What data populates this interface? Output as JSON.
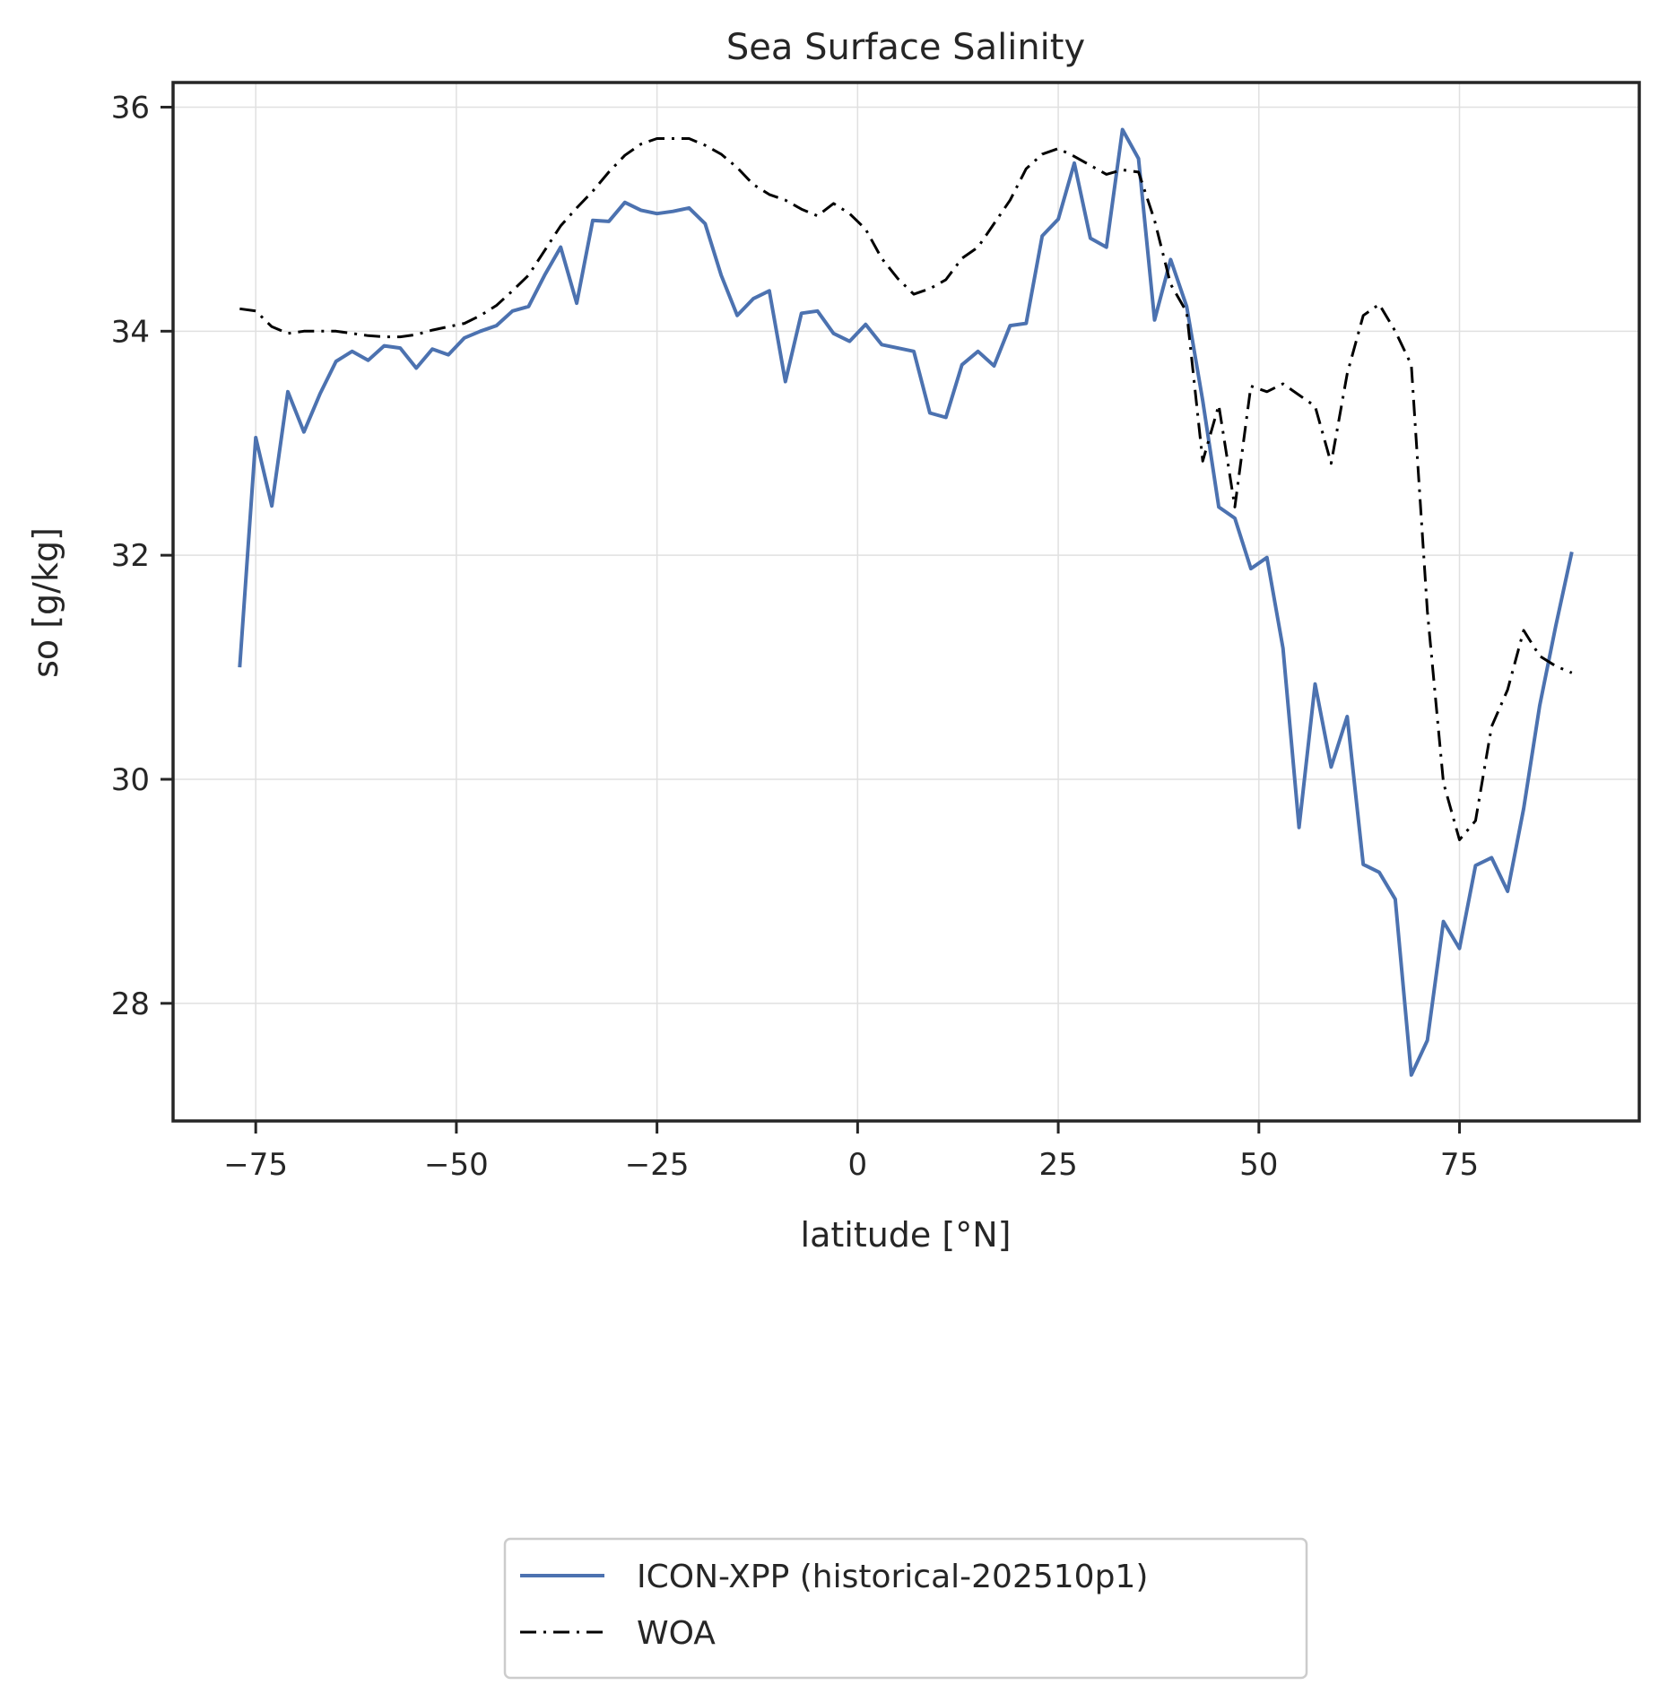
{
  "chart_data": {
    "type": "line",
    "title": "Sea Surface Salinity",
    "xlabel": "latitude [°N]",
    "ylabel": "so [g/kg]",
    "xlim": [
      -85.3,
      97.4
    ],
    "ylim": [
      26.95,
      36.22
    ],
    "xticks": [
      -75,
      -50,
      -25,
      0,
      25,
      50,
      75
    ],
    "xtick_labels": [
      "−75",
      "−50",
      "−25",
      "0",
      "25",
      "50",
      "75"
    ],
    "yticks": [
      28,
      30,
      32,
      34,
      36
    ],
    "ytick_labels": [
      "28",
      "30",
      "32",
      "34",
      "36"
    ],
    "grid": true,
    "legend_position": "below plot, centered",
    "x": [
      -77,
      -75,
      -73,
      -71,
      -69,
      -67,
      -65,
      -63,
      -61,
      -59,
      -57,
      -55,
      -53,
      -51,
      -49,
      -47,
      -45,
      -43,
      -41,
      -39,
      -37,
      -35,
      -33,
      -31,
      -29,
      -27,
      -25,
      -23,
      -21,
      -19,
      -17,
      -15,
      -13,
      -11,
      -9,
      -7,
      -5,
      -3,
      -1,
      1,
      3,
      5,
      7,
      9,
      11,
      13,
      15,
      17,
      19,
      21,
      23,
      25,
      27,
      29,
      31,
      33,
      35,
      37,
      39,
      41,
      43,
      45,
      47,
      49,
      51,
      53,
      55,
      57,
      59,
      61,
      63,
      65,
      67,
      69,
      71,
      73,
      75,
      77,
      79,
      81,
      83,
      85,
      87,
      89
    ],
    "series": [
      {
        "name": "ICON-XPP (historical-202510p1)",
        "color": "#4c72b0",
        "linestyle": "solid",
        "values": [
          31.0,
          33.05,
          32.44,
          33.46,
          33.1,
          33.44,
          33.73,
          33.82,
          33.74,
          33.87,
          33.85,
          33.67,
          33.84,
          33.79,
          33.94,
          34.0,
          34.05,
          34.18,
          34.22,
          34.5,
          34.75,
          34.25,
          34.99,
          34.98,
          35.15,
          35.08,
          35.05,
          35.07,
          35.1,
          34.96,
          34.5,
          34.14,
          34.29,
          34.36,
          33.55,
          34.16,
          34.18,
          33.98,
          33.91,
          34.06,
          33.88,
          33.85,
          33.82,
          33.27,
          33.23,
          33.7,
          33.82,
          33.69,
          34.05,
          34.07,
          34.85,
          35.0,
          35.5,
          34.83,
          34.75,
          35.8,
          35.54,
          34.1,
          34.64,
          34.22,
          33.38,
          32.43,
          32.33,
          31.88,
          31.98,
          31.17,
          29.57,
          30.85,
          30.11,
          30.56,
          29.24,
          29.17,
          28.93,
          27.36,
          27.67,
          28.73,
          28.49,
          29.23,
          29.3,
          29.0,
          29.74,
          30.66,
          31.37,
          32.03
        ]
      },
      {
        "name": "WOA",
        "color": "#000000",
        "linestyle": "dashdot",
        "values": [
          34.2,
          34.18,
          34.04,
          33.98,
          34.0,
          34.0,
          34.0,
          33.98,
          33.96,
          33.95,
          33.95,
          33.97,
          34.01,
          34.04,
          34.07,
          34.14,
          34.23,
          34.36,
          34.5,
          34.72,
          34.94,
          35.1,
          35.25,
          35.42,
          35.57,
          35.67,
          35.72,
          35.72,
          35.72,
          35.66,
          35.58,
          35.46,
          35.31,
          35.22,
          35.17,
          35.09,
          35.03,
          35.14,
          35.05,
          34.91,
          34.65,
          34.47,
          34.33,
          34.38,
          34.46,
          34.65,
          34.75,
          34.96,
          35.17,
          35.45,
          35.58,
          35.63,
          35.56,
          35.48,
          35.4,
          35.44,
          35.42,
          34.99,
          34.42,
          34.17,
          32.84,
          33.34,
          32.43,
          33.51,
          33.46,
          33.53,
          33.43,
          33.33,
          32.82,
          33.62,
          34.14,
          34.24,
          34.0,
          33.7,
          31.5,
          29.97,
          29.46,
          29.63,
          30.47,
          30.8,
          31.33,
          31.1,
          31.01,
          30.95
        ]
      }
    ]
  },
  "legend": {
    "items": [
      {
        "label": "ICON-XPP (historical-202510p1)",
        "color": "#4c72b0",
        "style": "solid"
      },
      {
        "label": "WOA",
        "color": "#000000",
        "style": "dashdot"
      }
    ]
  },
  "colors": {
    "spine": "#262626",
    "grid": "#e0e0e0",
    "legend_border": "#cccccc"
  }
}
